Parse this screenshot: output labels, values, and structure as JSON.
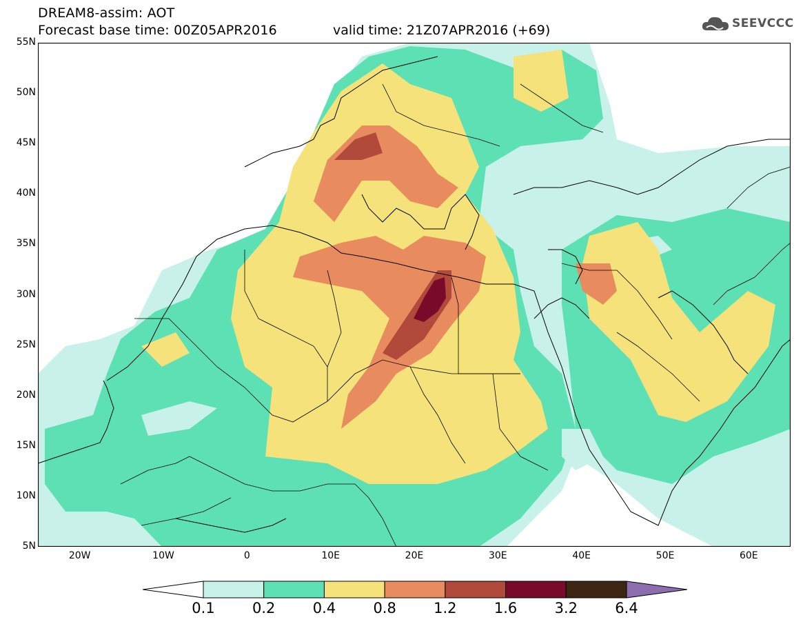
{
  "header": {
    "line1": "DREAM8-assim: AOT",
    "line2": "Forecast base time: 00Z05APR2016",
    "valid": "valid time: 21Z07APR2016 (+69)",
    "logo_text": "SEEVCCC",
    "logo_icon": "cloud-icon"
  },
  "axes": {
    "y_labels": [
      "55N",
      "50N",
      "45N",
      "40N",
      "35N",
      "30N",
      "25N",
      "20N",
      "15N",
      "10N",
      "5N"
    ],
    "x_labels": [
      "20W",
      "10W",
      "0",
      "10E",
      "20E",
      "30E",
      "40E",
      "50E",
      "60E"
    ],
    "lon_range": [
      -25,
      65
    ],
    "lat_range": [
      5,
      55
    ]
  },
  "colorbar": {
    "labels": [
      "0.1",
      "0.2",
      "0.4",
      "0.8",
      "1.2",
      "1.6",
      "3.2",
      "6.4"
    ],
    "colors": [
      "#ffffff",
      "#c8f1ea",
      "#5de0b4",
      "#f5e27a",
      "#e88c5f",
      "#b14a3a",
      "#7a0a2a",
      "#3e2512",
      "#8c6db0"
    ]
  }
}
